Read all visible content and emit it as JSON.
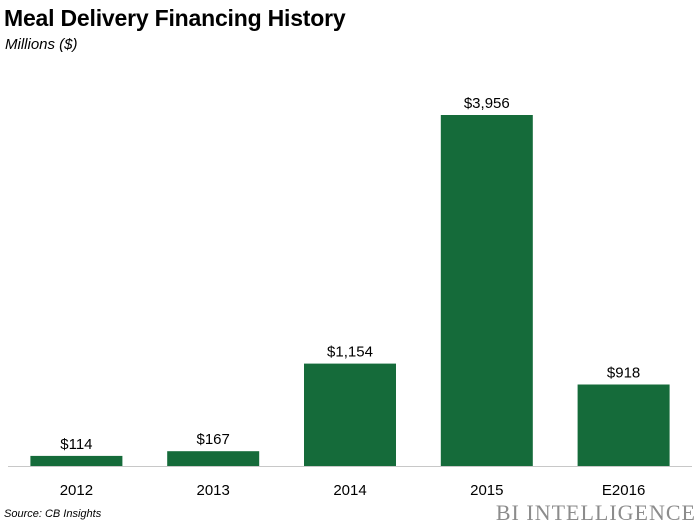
{
  "header": {
    "title": "Meal Delivery Financing History",
    "subtitle": "Millions ($)"
  },
  "footer": {
    "source": "Source: CB Insights",
    "brand": "BI INTELLIGENCE"
  },
  "colors": {
    "bar": "#156b3a",
    "axis": "#c8c8c8"
  },
  "chart_data": {
    "type": "bar",
    "title": "Meal Delivery Financing History",
    "subtitle": "Millions ($)",
    "categories": [
      "2012",
      "2013",
      "2014",
      "2015",
      "E2016"
    ],
    "values": [
      114,
      167,
      1154,
      3956,
      918
    ],
    "data_labels": [
      "$114",
      "$167",
      "$1,154",
      "$3,956",
      "$918"
    ],
    "xlabel": "",
    "ylabel": "",
    "ylim": [
      0,
      4000
    ],
    "grid": false,
    "legend": "none"
  }
}
